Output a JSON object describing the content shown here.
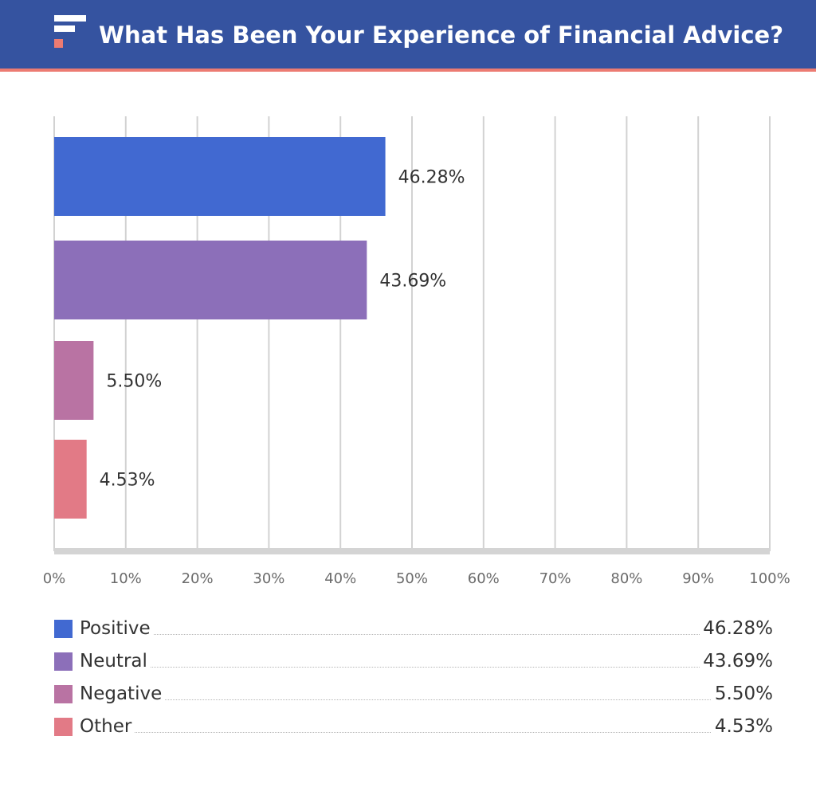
{
  "header": {
    "title": "What Has Been Your Experience of Financial Advice?",
    "background_color": "#3553a0",
    "rule_color": "#ec7b72",
    "logo_icon": "brand-logo-icon"
  },
  "chart_data": {
    "type": "bar",
    "orientation": "horizontal",
    "title": "What Has Been Your Experience of Financial Advice?",
    "categories": [
      "Positive",
      "Neutral",
      "Negative",
      "Other"
    ],
    "values": [
      46.28,
      43.69,
      5.5,
      4.53
    ],
    "value_labels": [
      "46.28%",
      "43.69%",
      "5.50%",
      "4.53%"
    ],
    "colors": [
      "#4169d1",
      "#8c6fb9",
      "#b973a3",
      "#e27a86"
    ],
    "xlim": [
      0,
      100
    ],
    "x_ticks": [
      "0%",
      "10%",
      "20%",
      "30%",
      "40%",
      "50%",
      "60%",
      "70%",
      "80%",
      "90%",
      "100%"
    ],
    "xlabel": "",
    "ylabel": "",
    "grid": true,
    "legend_position": "bottom"
  },
  "legend": {
    "items": [
      {
        "label": "Positive",
        "value": "46.28%",
        "color": "#4169d1"
      },
      {
        "label": "Neutral",
        "value": "43.69%",
        "color": "#8c6fb9"
      },
      {
        "label": "Negative",
        "value": "5.50%",
        "color": "#b973a3"
      },
      {
        "label": "Other",
        "value": "4.53%",
        "color": "#e27a86"
      }
    ]
  }
}
